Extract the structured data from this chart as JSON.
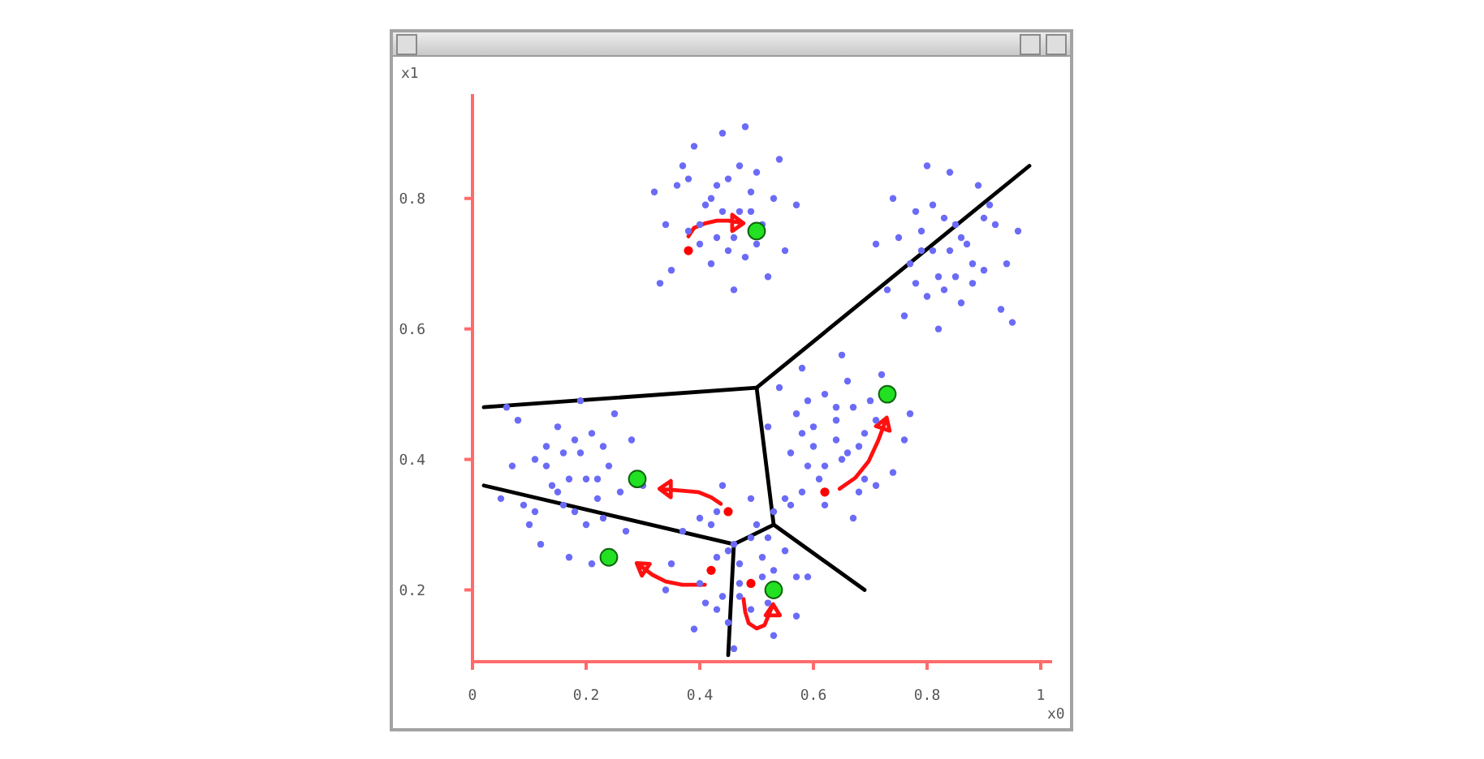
{
  "chart_data": {
    "type": "scatter",
    "xlabel": "x0",
    "ylabel": "x1",
    "xlim": [
      0,
      1.02
    ],
    "ylim": [
      0.09,
      0.96
    ],
    "xticks": [
      0,
      0.2,
      0.4,
      0.6,
      0.8,
      1
    ],
    "yticks": [
      0.2,
      0.4,
      0.6,
      0.8
    ],
    "series": [
      {
        "color": "#6b6bf7",
        "marker": "circle",
        "x": [
          0.44,
          0.46,
          0.41,
          0.49,
          0.38,
          0.45,
          0.42,
          0.51,
          0.36,
          0.47,
          0.4,
          0.53,
          0.43,
          0.48,
          0.37,
          0.5,
          0.34,
          0.55,
          0.39,
          0.46,
          0.52,
          0.35,
          0.57,
          0.32,
          0.44,
          0.42,
          0.47,
          0.4,
          0.45,
          0.49,
          0.43,
          0.5,
          0.38,
          0.54,
          0.33,
          0.48
        ],
        "values": [
          0.78,
          0.74,
          0.79,
          0.81,
          0.75,
          0.83,
          0.7,
          0.76,
          0.82,
          0.85,
          0.73,
          0.8,
          0.74,
          0.71,
          0.85,
          0.84,
          0.76,
          0.72,
          0.88,
          0.66,
          0.68,
          0.69,
          0.79,
          0.81,
          0.9,
          0.8,
          0.78,
          0.76,
          0.72,
          0.78,
          0.82,
          0.73,
          0.83,
          0.86,
          0.67,
          0.91
        ]
      },
      {
        "color": "#6b6bf7",
        "marker": "circle",
        "x": [
          0.84,
          0.82,
          0.87,
          0.79,
          0.9,
          0.83,
          0.86,
          0.77,
          0.92,
          0.81,
          0.88,
          0.75,
          0.85,
          0.8,
          0.91,
          0.78,
          0.94,
          0.73,
          0.89,
          0.82,
          0.76,
          0.93,
          0.71,
          0.96,
          0.84,
          0.86,
          0.81,
          0.88,
          0.83,
          0.79,
          0.85,
          0.78,
          0.9,
          0.74,
          0.95,
          0.8
        ],
        "values": [
          0.72,
          0.68,
          0.73,
          0.75,
          0.69,
          0.77,
          0.64,
          0.7,
          0.76,
          0.79,
          0.67,
          0.74,
          0.68,
          0.65,
          0.79,
          0.78,
          0.7,
          0.66,
          0.82,
          0.6,
          0.62,
          0.63,
          0.73,
          0.75,
          0.84,
          0.74,
          0.72,
          0.7,
          0.66,
          0.72,
          0.76,
          0.67,
          0.77,
          0.8,
          0.61,
          0.85
        ]
      },
      {
        "color": "#6b6bf7",
        "marker": "circle",
        "x": [
          0.64,
          0.6,
          0.65,
          0.67,
          0.61,
          0.69,
          0.56,
          0.62,
          0.68,
          0.71,
          0.59,
          0.66,
          0.6,
          0.57,
          0.71,
          0.7,
          0.62,
          0.58,
          0.74,
          0.52,
          0.54,
          0.55,
          0.65,
          0.67,
          0.76,
          0.66,
          0.64,
          0.62,
          0.58,
          0.64,
          0.68,
          0.59,
          0.69,
          0.72,
          0.53,
          0.77
        ],
        "values": [
          0.43,
          0.45,
          0.4,
          0.48,
          0.37,
          0.44,
          0.41,
          0.5,
          0.35,
          0.46,
          0.39,
          0.52,
          0.42,
          0.47,
          0.36,
          0.49,
          0.33,
          0.54,
          0.38,
          0.45,
          0.51,
          0.34,
          0.56,
          0.31,
          0.43,
          0.41,
          0.46,
          0.39,
          0.44,
          0.48,
          0.42,
          0.49,
          0.37,
          0.53,
          0.32,
          0.47
        ]
      },
      {
        "color": "#6b6bf7",
        "marker": "circle",
        "x": [
          0.17,
          0.19,
          0.14,
          0.22,
          0.11,
          0.18,
          0.15,
          0.24,
          0.09,
          0.2,
          0.13,
          0.26,
          0.16,
          0.21,
          0.1,
          0.23,
          0.07,
          0.28,
          0.12,
          0.19,
          0.25,
          0.08,
          0.3,
          0.05,
          0.17,
          0.15,
          0.2,
          0.13,
          0.18,
          0.22,
          0.16,
          0.23,
          0.11,
          0.27,
          0.06,
          0.21
        ],
        "values": [
          0.37,
          0.41,
          0.36,
          0.34,
          0.4,
          0.32,
          0.45,
          0.39,
          0.33,
          0.3,
          0.42,
          0.35,
          0.41,
          0.44,
          0.3,
          0.31,
          0.39,
          0.43,
          0.27,
          0.49,
          0.47,
          0.46,
          0.36,
          0.34,
          0.25,
          0.35,
          0.37,
          0.39,
          0.43,
          0.37,
          0.33,
          0.42,
          0.32,
          0.29,
          0.48,
          0.24
        ]
      },
      {
        "color": "#6b6bf7",
        "marker": "circle",
        "x": [
          0.47,
          0.51,
          0.46,
          0.44,
          0.5,
          0.43,
          0.55,
          0.49,
          0.43,
          0.4,
          0.52,
          0.45,
          0.51,
          0.57,
          0.4,
          0.41,
          0.49,
          0.53,
          0.37,
          0.59,
          0.57,
          0.56,
          0.46,
          0.44,
          0.35,
          0.45,
          0.47,
          0.49,
          0.53,
          0.47,
          0.43,
          0.52,
          0.42,
          0.39,
          0.58,
          0.34
        ],
        "values": [
          0.24,
          0.22,
          0.27,
          0.19,
          0.3,
          0.17,
          0.26,
          0.17,
          0.32,
          0.21,
          0.28,
          0.15,
          0.25,
          0.22,
          0.31,
          0.18,
          0.34,
          0.13,
          0.29,
          0.22,
          0.16,
          0.33,
          0.11,
          0.36,
          0.24,
          0.26,
          0.21,
          0.28,
          0.23,
          0.19,
          0.25,
          0.18,
          0.3,
          0.14,
          0.35,
          0.2
        ]
      },
      {
        "type": "line",
        "color": "#000000",
        "x": [
          0.02,
          0.5
        ],
        "values": [
          0.48,
          0.51
        ]
      },
      {
        "type": "line",
        "color": "#000000",
        "x": [
          0.5,
          0.98
        ],
        "values": [
          0.51,
          0.85
        ]
      },
      {
        "type": "line",
        "color": "#000000",
        "x": [
          0.5,
          0.53
        ],
        "values": [
          0.51,
          0.3
        ]
      },
      {
        "type": "line",
        "color": "#000000",
        "x": [
          0.53,
          0.69
        ],
        "values": [
          0.3,
          0.2
        ]
      },
      {
        "type": "line",
        "color": "#000000",
        "x": [
          0.53,
          0.46
        ],
        "values": [
          0.3,
          0.27
        ]
      },
      {
        "type": "line",
        "color": "#000000",
        "x": [
          0.46,
          0.45
        ],
        "values": [
          0.27,
          0.1
        ]
      },
      {
        "type": "line",
        "color": "#000000",
        "x": [
          0.02,
          0.46
        ],
        "values": [
          0.36,
          0.27
        ]
      },
      {
        "type": "line",
        "color": "#ff1010",
        "x": [
          0.38,
          0.39,
          0.41,
          0.43,
          0.45,
          0.477,
          0.457,
          0.457,
          0.477
        ],
        "values": [
          0.742,
          0.755,
          0.762,
          0.766,
          0.766,
          0.762,
          0.775,
          0.75,
          0.762
        ]
      },
      {
        "type": "line",
        "color": "#ff1010",
        "x": [
          0.437,
          0.42,
          0.397,
          0.369,
          0.329,
          0.349,
          0.349,
          0.329
        ],
        "values": [
          0.332,
          0.342,
          0.35,
          0.352,
          0.355,
          0.367,
          0.342,
          0.355
        ]
      },
      {
        "type": "line",
        "color": "#ff1010",
        "x": [
          0.409,
          0.369,
          0.34,
          0.317,
          0.289,
          0.312,
          0.298,
          0.289
        ],
        "values": [
          0.208,
          0.208,
          0.213,
          0.223,
          0.241,
          0.24,
          0.222,
          0.241
        ]
      },
      {
        "type": "line",
        "color": "#ff1010",
        "x": [
          0.477,
          0.48,
          0.486,
          0.5,
          0.514,
          0.529,
          0.516,
          0.541,
          0.529
        ],
        "values": [
          0.186,
          0.166,
          0.149,
          0.141,
          0.146,
          0.178,
          0.161,
          0.161,
          0.178
        ]
      },
      {
        "type": "line",
        "color": "#ff1010",
        "x": [
          0.646,
          0.674,
          0.697,
          0.714,
          0.729,
          0.734,
          0.71,
          0.729
        ],
        "values": [
          0.355,
          0.372,
          0.397,
          0.429,
          0.464,
          0.444,
          0.451,
          0.464
        ]
      },
      {
        "color": "#ff0000",
        "marker": "circle",
        "x": [
          0.38,
          0.45,
          0.42,
          0.49,
          0.62
        ],
        "values": [
          0.72,
          0.32,
          0.23,
          0.21,
          0.35
        ]
      },
      {
        "color": "#22e022",
        "marker": "circle",
        "x": [
          0.5,
          0.29,
          0.24,
          0.53,
          0.73
        ],
        "values": [
          0.75,
          0.37,
          0.25,
          0.2,
          0.5
        ]
      }
    ]
  }
}
